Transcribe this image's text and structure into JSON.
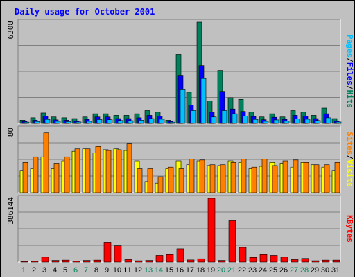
{
  "chart_data": {
    "title": "Daily usage for October 2001",
    "days": [
      "1",
      "2",
      "3",
      "4",
      "5",
      "6",
      "7",
      "8",
      "9",
      "10",
      "11",
      "12",
      "13",
      "14",
      "15",
      "16",
      "17",
      "18",
      "19",
      "20",
      "21",
      "22",
      "23",
      "24",
      "25",
      "26",
      "27",
      "28",
      "29",
      "30",
      "31"
    ],
    "weekend_days": [
      "6",
      "7",
      "13",
      "14",
      "20",
      "21",
      "27",
      "28"
    ],
    "colors": {
      "hits": "#00805c",
      "files": "#0000ff",
      "pages": "#00c0ff",
      "visits": "#ffff00",
      "sites": "#ff8000",
      "kbytes": "#ff0000",
      "weekday_label": "#000000",
      "weekend_label": "#00805c"
    },
    "panels": [
      {
        "type": "bar",
        "ymax_label": "6308",
        "ylim": [
          0,
          6308
        ],
        "legend": [
          {
            "name": "Pages",
            "color": "#00c0ff"
          },
          {
            "name": "/",
            "color": "#000000"
          },
          {
            "name": "Files",
            "color": "#0000ff"
          },
          {
            "name": "/",
            "color": "#000000"
          },
          {
            "name": "Hits",
            "color": "#00805c"
          }
        ],
        "series": [
          {
            "name": "Hits",
            "color": "#00805c",
            "values": [
              200,
              350,
              650,
              400,
              350,
              300,
              400,
              600,
              600,
              500,
              500,
              600,
              800,
              700,
              200,
              4300,
              1950,
              6308,
              1400,
              3300,
              1600,
              1500,
              700,
              400,
              600,
              400,
              800,
              700,
              500,
              950,
              300
            ]
          },
          {
            "name": "Files",
            "color": "#0000ff",
            "values": [
              130,
              200,
              450,
              220,
              200,
              160,
              250,
              400,
              400,
              300,
              300,
              350,
              500,
              450,
              130,
              3000,
              1150,
              3600,
              700,
              2000,
              900,
              750,
              430,
              230,
              380,
              250,
              500,
              450,
              300,
              600,
              150
            ]
          },
          {
            "name": "Pages",
            "color": "#00c0ff",
            "values": [
              80,
              120,
              250,
              130,
              110,
              90,
              130,
              240,
              230,
              180,
              170,
              200,
              300,
              260,
              80,
              2100,
              800,
              2800,
              400,
              800,
              600,
              450,
              250,
              130,
              220,
              140,
              280,
              260,
              180,
              350,
              90
            ]
          }
        ]
      },
      {
        "type": "bar",
        "ymax_label": "80",
        "ylim": [
          0,
          80
        ],
        "legend": [
          {
            "name": "Sites",
            "color": "#ff8000"
          },
          {
            "name": "/",
            "color": "#000000"
          },
          {
            "name": "Visits",
            "color": "#ffff00"
          }
        ],
        "series": [
          {
            "name": "Visits",
            "color": "#ffff00",
            "values": [
              28,
              30,
              45,
              30,
              40,
              52,
              55,
              50,
              54,
              55,
              53,
              40,
              14,
              12,
              30,
              40,
              35,
              40,
              34,
              34,
              40,
              38,
              30,
              33,
              38,
              37,
              32,
              38,
              35,
              32,
              28
            ]
          },
          {
            "name": "Sites",
            "color": "#ff8000",
            "values": [
              38,
              45,
              75,
              37,
              45,
              55,
              55,
              58,
              53,
              54,
              62,
              30,
              30,
              20,
              32,
              30,
              42,
              41,
              35,
              35,
              38,
              42,
              32,
              42,
              34,
              40,
              41,
              38,
              35,
              35,
              38
            ]
          }
        ]
      },
      {
        "type": "bar",
        "ymax_label": "386144",
        "ylim": [
          0,
          386144
        ],
        "legend": [
          {
            "name": "KBytes",
            "color": "#ff0000"
          }
        ],
        "series": [
          {
            "name": "KBytes",
            "color": "#ff0000",
            "values": [
              4000,
              5000,
              30000,
              10000,
              12000,
              6000,
              10000,
              12000,
              120000,
              98000,
              15000,
              8000,
              10000,
              40000,
              45000,
              80000,
              13000,
              20000,
              386144,
              10000,
              250000,
              88000,
              28000,
              45000,
              40000,
              30000,
              15000,
              22000,
              8000,
              12000,
              12000
            ]
          }
        ]
      }
    ]
  }
}
